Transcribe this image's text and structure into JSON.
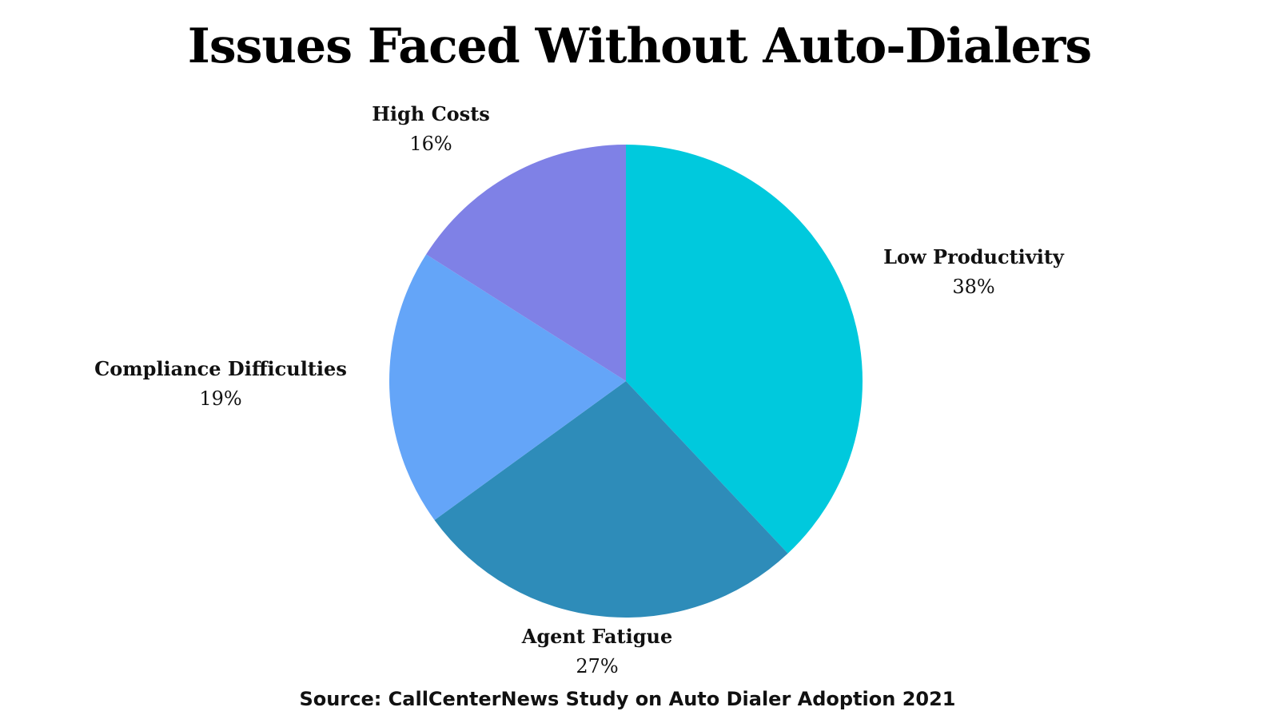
{
  "chart_data": {
    "type": "pie",
    "title": "Issues Faced Without Auto-Dialers",
    "source": "Source: CallCenterNews Study on Auto Dialer Adoption 2021",
    "slices": [
      {
        "label": "Low Productivity",
        "value": 38,
        "display": "38%",
        "color": "#00C9DD"
      },
      {
        "label": "Agent Fatigue",
        "value": 27,
        "display": "27%",
        "color": "#2E8CB9"
      },
      {
        "label": "Compliance Difficulties",
        "value": 19,
        "display": "19%",
        "color": "#64A5F8"
      },
      {
        "label": "High Costs",
        "value": 16,
        "display": "16%",
        "color": "#7F81E6"
      }
    ],
    "start_angle": "12 o'clock",
    "direction": "clockwise",
    "legend": "none"
  }
}
